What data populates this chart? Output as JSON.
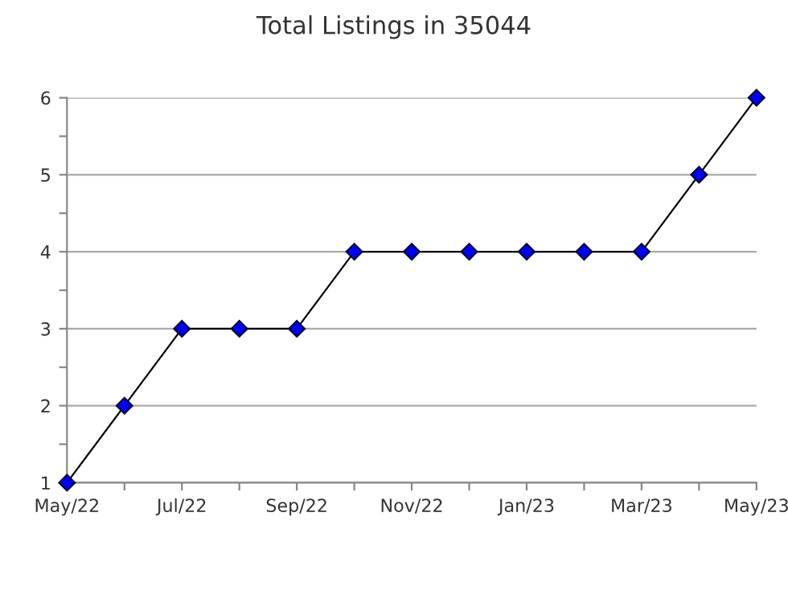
{
  "chart_data": {
    "type": "line",
    "title": "Total Listings in 35044",
    "categories": [
      "May/22",
      null,
      "Jul/22",
      null,
      "Sep/22",
      null,
      "Nov/22",
      null,
      "Jan/23",
      null,
      "Mar/23",
      null,
      "May/23"
    ],
    "series": [
      {
        "color": "#0000ff",
        "values": [
          1,
          2,
          3,
          3,
          3,
          4,
          4,
          4,
          4,
          4,
          4,
          5,
          6
        ]
      }
    ],
    "ylim": [
      1,
      6
    ],
    "yticks": [
      1,
      {
        "value": 1.5,
        "label": null
      },
      2,
      {
        "value": 2.5,
        "label": null
      },
      3,
      {
        "value": 3.5,
        "label": null
      },
      4,
      {
        "value": 4.5,
        "label": null
      },
      5,
      {
        "value": 5.5,
        "label": null
      },
      6
    ],
    "grid": "y",
    "marker": "diamond",
    "line_style": "solid",
    "legend": false
  }
}
